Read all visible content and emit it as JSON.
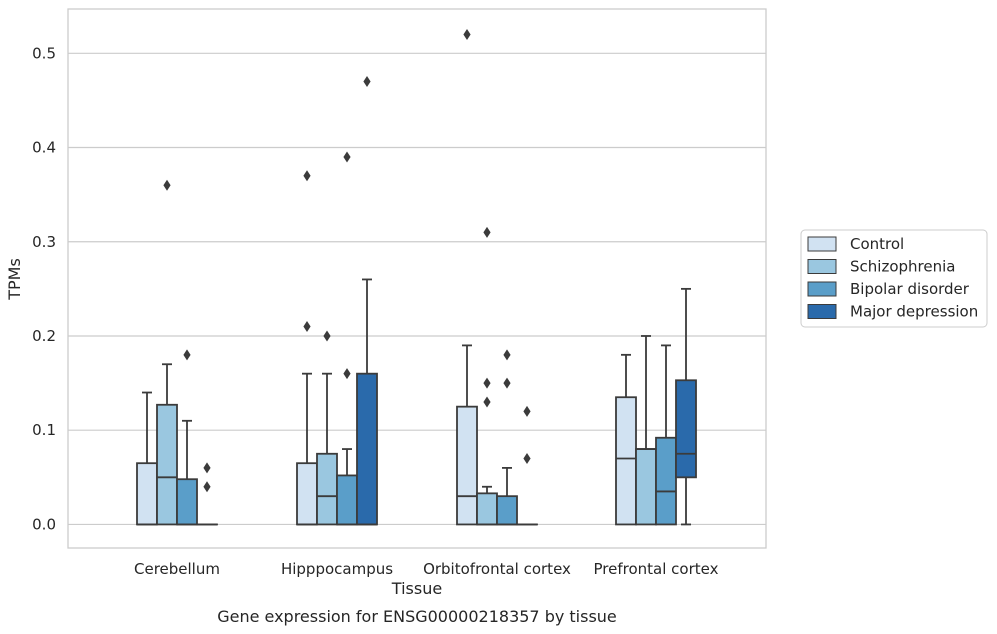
{
  "chart_data": {
    "type": "boxplot",
    "title": "Gene expression for ENSG00000218357 by tissue",
    "xlabel": "Tissue",
    "ylabel": "TPMs",
    "ylim": [
      -0.025,
      0.547
    ],
    "yticks": [
      "0.0",
      "0.1",
      "0.2",
      "0.3",
      "0.4",
      "0.5"
    ],
    "grid": "horizontal",
    "legend_position": "right",
    "categories": [
      "Cerebellum",
      "Hipppocampus",
      "Orbitofrontal cortex",
      "Prefrontal cortex"
    ],
    "series": [
      {
        "name": "Control",
        "color": "#d1e2f2",
        "boxes": [
          {
            "min": 0.0,
            "q1": 0.0,
            "median": 0.0,
            "q3": 0.065,
            "max": 0.14,
            "outliers": []
          },
          {
            "min": 0.0,
            "q1": 0.0,
            "median": 0.0,
            "q3": 0.065,
            "max": 0.16,
            "outliers": [
              0.21,
              0.37
            ]
          },
          {
            "min": 0.0,
            "q1": 0.0,
            "median": 0.03,
            "q3": 0.125,
            "max": 0.19,
            "outliers": [
              0.52
            ]
          },
          {
            "min": 0.0,
            "q1": 0.0,
            "median": 0.07,
            "q3": 0.135,
            "max": 0.18,
            "outliers": []
          }
        ]
      },
      {
        "name": "Schizophrenia",
        "color": "#9ac7e0",
        "boxes": [
          {
            "min": 0.0,
            "q1": 0.0,
            "median": 0.05,
            "q3": 0.127,
            "max": 0.17,
            "outliers": [
              0.36
            ]
          },
          {
            "min": 0.0,
            "q1": 0.0,
            "median": 0.03,
            "q3": 0.075,
            "max": 0.16,
            "outliers": [
              0.2
            ]
          },
          {
            "min": 0.0,
            "q1": 0.0,
            "median": 0.0,
            "q3": 0.033,
            "max": 0.04,
            "outliers": [
              0.31,
              0.15,
              0.13
            ]
          },
          {
            "min": 0.0,
            "q1": 0.0,
            "median": 0.08,
            "q3": 0.08,
            "max": 0.2,
            "outliers": []
          }
        ]
      },
      {
        "name": "Bipolar disorder",
        "color": "#5a9ec9",
        "boxes": [
          {
            "min": 0.0,
            "q1": 0.0,
            "median": 0.0,
            "q3": 0.048,
            "max": 0.11,
            "outliers": [
              0.18
            ]
          },
          {
            "min": 0.0,
            "q1": 0.0,
            "median": 0.0,
            "q3": 0.052,
            "max": 0.08,
            "outliers": [
              0.39,
              0.16
            ]
          },
          {
            "min": 0.0,
            "q1": 0.0,
            "median": 0.0,
            "q3": 0.03,
            "max": 0.06,
            "outliers": [
              0.18,
              0.15
            ]
          },
          {
            "min": 0.0,
            "q1": 0.0,
            "median": 0.035,
            "q3": 0.092,
            "max": 0.19,
            "outliers": []
          }
        ]
      },
      {
        "name": "Major depression",
        "color": "#2a6aab",
        "boxes": [
          {
            "min": 0.0,
            "q1": 0.0,
            "median": 0.0,
            "q3": 0.0,
            "max": 0.0,
            "outliers": [
              0.06,
              0.04
            ]
          },
          {
            "min": 0.0,
            "q1": 0.0,
            "median": 0.0,
            "q3": 0.16,
            "max": 0.26,
            "outliers": [
              0.47
            ]
          },
          {
            "min": 0.0,
            "q1": 0.0,
            "median": 0.0,
            "q3": 0.0,
            "max": 0.0,
            "outliers": [
              0.12,
              0.07
            ]
          },
          {
            "min": 0.0,
            "q1": 0.05,
            "median": 0.075,
            "q3": 0.153,
            "max": 0.25,
            "outliers": []
          }
        ]
      }
    ]
  }
}
